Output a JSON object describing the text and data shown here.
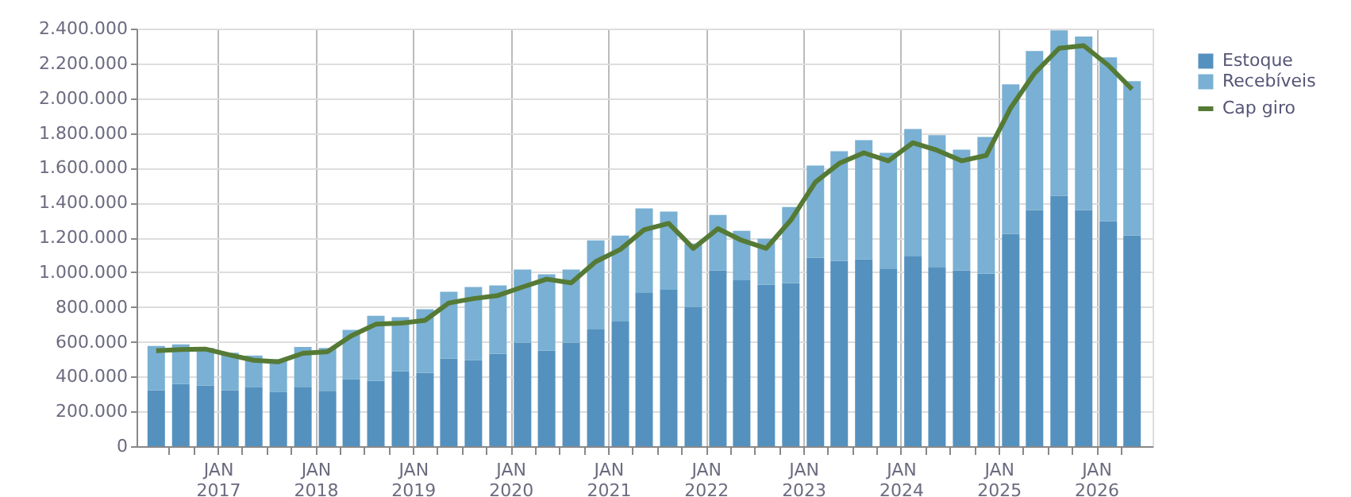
{
  "chart_data": {
    "type": "bar",
    "stacked": true,
    "grid": true,
    "legend": "top right",
    "marker": "none",
    "line_style": "solid",
    "x": [
      "2016-05-15",
      "2016-08-15",
      "2016-11-15",
      "2017-02-15",
      "2017-05-15",
      "2017-08-15",
      "2017-11-15",
      "2018-02-15",
      "2018-05-15",
      "2018-08-15",
      "2018-11-15",
      "2019-02-15",
      "2019-05-15",
      "2019-08-15",
      "2019-11-15",
      "2020-02-15",
      "2020-05-15",
      "2020-08-15",
      "2020-11-15",
      "2021-02-15",
      "2021-05-15",
      "2021-08-15",
      "2021-11-15",
      "2022-02-15",
      "2022-05-15",
      "2022-08-15",
      "2022-11-15",
      "2023-02-15",
      "2023-05-15",
      "2023-08-15",
      "2023-11-15",
      "2024-02-15",
      "2024-05-15",
      "2024-08-15",
      "2024-11-15",
      "2025-02-15",
      "2025-05-15",
      "2025-08-15",
      "2025-11-15",
      "2026-02-15",
      "2026-05-15"
    ],
    "xlim": [
      "2016-04-01",
      "2026-07-01"
    ],
    "xticks": [
      {
        "value": "2016-07-01",
        "label": null
      },
      {
        "value": "2016-10-01",
        "label": null
      },
      {
        "value": "2017-01-01",
        "label": "JAN 2017"
      },
      {
        "value": "2017-04-01",
        "label": null
      },
      {
        "value": "2017-07-01",
        "label": null
      },
      {
        "value": "2017-10-01",
        "label": null
      },
      {
        "value": "2018-01-01",
        "label": "JAN 2018"
      },
      {
        "value": "2018-04-01",
        "label": null
      },
      {
        "value": "2018-07-01",
        "label": null
      },
      {
        "value": "2018-10-01",
        "label": null
      },
      {
        "value": "2019-01-01",
        "label": "JAN 2019"
      },
      {
        "value": "2019-04-01",
        "label": null
      },
      {
        "value": "2019-07-01",
        "label": null
      },
      {
        "value": "2019-10-01",
        "label": null
      },
      {
        "value": "2020-01-01",
        "label": "JAN 2020"
      },
      {
        "value": "2020-04-01",
        "label": null
      },
      {
        "value": "2020-07-01",
        "label": null
      },
      {
        "value": "2020-10-01",
        "label": null
      },
      {
        "value": "2021-01-01",
        "label": "JAN 2021"
      },
      {
        "value": "2021-04-01",
        "label": null
      },
      {
        "value": "2021-07-01",
        "label": null
      },
      {
        "value": "2021-10-01",
        "label": null
      },
      {
        "value": "2022-01-01",
        "label": "JAN 2022"
      },
      {
        "value": "2022-04-01",
        "label": null
      },
      {
        "value": "2022-07-01",
        "label": null
      },
      {
        "value": "2022-10-01",
        "label": null
      },
      {
        "value": "2023-01-01",
        "label": "JAN 2023"
      },
      {
        "value": "2023-04-01",
        "label": null
      },
      {
        "value": "2023-07-01",
        "label": null
      },
      {
        "value": "2023-10-01",
        "label": null
      },
      {
        "value": "2024-01-01",
        "label": "JAN 2024"
      },
      {
        "value": "2024-04-01",
        "label": null
      },
      {
        "value": "2024-07-01",
        "label": null
      },
      {
        "value": "2024-10-01",
        "label": null
      },
      {
        "value": "2025-01-01",
        "label": "JAN 2025"
      },
      {
        "value": "2025-04-01",
        "label": null
      },
      {
        "value": "2025-07-01",
        "label": null
      },
      {
        "value": "2025-10-01",
        "label": null
      },
      {
        "value": "2026-01-01",
        "label": "JAN 2026"
      },
      {
        "value": "2026-04-01",
        "label": null
      }
    ],
    "ylim": [
      0,
      2400000
    ],
    "yticks": [
      0,
      {
        "value": 200000,
        "label": "200.000"
      },
      {
        "value": 400000,
        "label": "400.000"
      },
      {
        "value": 600000,
        "label": "600.000"
      },
      {
        "value": 800000,
        "label": "800.000"
      },
      {
        "value": 1000000,
        "label": "1.000.000"
      },
      {
        "value": 1200000,
        "label": "1.200.000"
      },
      {
        "value": 1400000,
        "label": "1.400.000"
      },
      {
        "value": 1600000,
        "label": "1.600.000"
      },
      {
        "value": 1800000,
        "label": "1.800.000"
      },
      {
        "value": 2000000,
        "label": "2.000.000"
      },
      {
        "value": 2200000,
        "label": "2.200.000"
      },
      {
        "value": 2400000,
        "label": "2.400.000"
      }
    ],
    "series": [
      {
        "name": "Estoque",
        "color": "#5591be",
        "values": [
          320000,
          357000,
          348000,
          322000,
          338000,
          311000,
          341000,
          318000,
          384000,
          375000,
          430000,
          421000,
          503000,
          494000,
          530000,
          595000,
          549000,
          595000,
          671000,
          716000,
          881000,
          899000,
          799000,
          1009000,
          954000,
          927000,
          936000,
          1082000,
          1064000,
          1073000,
          1018000,
          1091000,
          1027000,
          1009000,
          991000,
          1220000,
          1357000,
          1439000,
          1357000,
          1293000,
          1210000
        ]
      },
      {
        "name": "Recebíveis",
        "color": "#79b0d3",
        "values": [
          256000,
          228000,
          217000,
          215000,
          183000,
          189000,
          229000,
          247000,
          284000,
          375000,
          311000,
          366000,
          384000,
          421000,
          394000,
          420000,
          439000,
          420000,
          512000,
          494000,
          485000,
          449000,
          366000,
          320000,
          284000,
          265000,
          439000,
          531000,
          631000,
          686000,
          668000,
          732000,
          760000,
          695000,
          786000,
          859000,
          914000,
          951000,
          997000,
          942000,
          888000
        ]
      },
      {
        "name": "Cap giro",
        "type": "line",
        "color": "#557a35",
        "values": [
          549000,
          555000,
          558000,
          524000,
          494000,
          485000,
          534000,
          543000,
          634000,
          701000,
          707000,
          723000,
          823000,
          848000,
          866000,
          915000,
          960000,
          939000,
          1061000,
          1131000,
          1244000,
          1280000,
          1137000,
          1250000,
          1183000,
          1137000,
          1299000,
          1518000,
          1625000,
          1686000,
          1640000,
          1744000,
          1701000,
          1640000,
          1671000,
          1945000,
          2143000,
          2287000,
          2302000,
          2189000,
          2052000
        ]
      }
    ]
  }
}
